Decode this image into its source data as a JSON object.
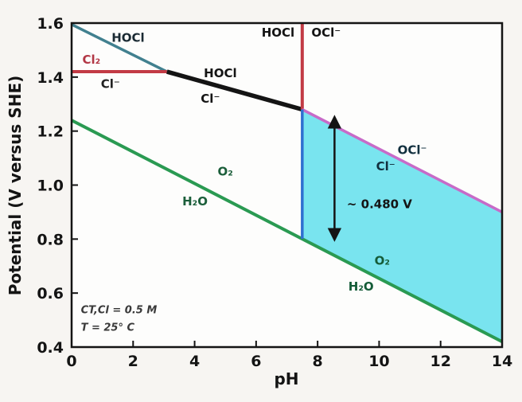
{
  "chart_data": {
    "type": "line",
    "title": "",
    "xlabel": "pH",
    "ylabel": "Potential (V versus SHE)",
    "xlim": [
      0,
      14
    ],
    "ylim": [
      0.4,
      1.6
    ],
    "x_ticks": [
      "0",
      "2",
      "4",
      "6",
      "8",
      "10",
      "12",
      "14"
    ],
    "y_ticks": [
      "0.4",
      "0.6",
      "0.8",
      "1.0",
      "1.2",
      "1.4",
      "1.6"
    ],
    "grid": false,
    "legend": "none",
    "series": [
      {
        "id": "cl2-hocl-line",
        "name": "Cl2 / HOCl boundary",
        "color": "#41808f",
        "width": 3.5,
        "points": [
          [
            0,
            1.595
          ],
          [
            3.1,
            1.42
          ]
        ]
      },
      {
        "id": "cl2-cl-line",
        "name": "Cl2 / Cl- boundary",
        "color": "#c23b45",
        "width": 4,
        "points": [
          [
            0,
            1.42
          ],
          [
            3.1,
            1.42
          ]
        ]
      },
      {
        "id": "hocl-cl-line",
        "name": "HOCl / Cl- boundary",
        "color": "#141414",
        "width": 5.5,
        "points": [
          [
            3.1,
            1.42
          ],
          [
            7.5,
            1.28
          ]
        ]
      },
      {
        "id": "hocl-ocl-line",
        "name": "HOCl / OCl- boundary",
        "color": "#c23b45",
        "width": 4,
        "points": [
          [
            7.5,
            1.28
          ],
          [
            7.5,
            1.6
          ]
        ]
      },
      {
        "id": "ocl-cl-line",
        "name": "OCl- / Cl- boundary",
        "color": "#c76bc8",
        "width": 3.5,
        "points": [
          [
            7.5,
            1.28
          ],
          [
            14,
            0.9
          ]
        ]
      },
      {
        "id": "o2-h2o-line",
        "name": "O2 / H2O line",
        "color": "#2a9a52",
        "width": 4,
        "points": [
          [
            0,
            1.24
          ],
          [
            14,
            0.42
          ]
        ]
      },
      {
        "id": "ph-divider-line",
        "name": "pH 7.5 divider",
        "color": "#2f6fd0",
        "width": 3.5,
        "points": [
          [
            7.5,
            0.801
          ],
          [
            7.5,
            1.28
          ]
        ]
      }
    ],
    "region": {
      "id": "hypochlorite-region",
      "name": "OCl- / Cl- shaded region",
      "fill": "#79e4ef",
      "points": [
        [
          7.5,
          1.28
        ],
        [
          14,
          0.9
        ],
        [
          14,
          0.42
        ],
        [
          7.5,
          0.801
        ]
      ]
    },
    "annotations": [
      {
        "text": "HOCl",
        "x": 1.3,
        "y": 1.53,
        "color": "#1a2a33",
        "anchor": "start"
      },
      {
        "text": "Cl₂",
        "x": 0.35,
        "y": 1.45,
        "color": "#b23745",
        "anchor": "start"
      },
      {
        "text": "Cl⁻",
        "x": 0.95,
        "y": 1.36,
        "color": "#222222",
        "anchor": "start"
      },
      {
        "text": "HOCl",
        "x": 4.3,
        "y": 1.4,
        "color": "#141414",
        "anchor": "start"
      },
      {
        "text": "Cl⁻",
        "x": 4.2,
        "y": 1.305,
        "color": "#141414",
        "anchor": "start"
      },
      {
        "text": "HOCl",
        "x": 7.25,
        "y": 1.55,
        "color": "#141414",
        "anchor": "end"
      },
      {
        "text": "OCl⁻",
        "x": 7.8,
        "y": 1.55,
        "color": "#141414",
        "anchor": "start"
      },
      {
        "text": "OCl⁻",
        "x": 10.6,
        "y": 1.115,
        "color": "#12303f",
        "anchor": "start"
      },
      {
        "text": "Cl⁻",
        "x": 9.9,
        "y": 1.055,
        "color": "#12303f",
        "anchor": "start"
      },
      {
        "text": "O₂",
        "x": 4.75,
        "y": 1.035,
        "color": "#1b5e3a",
        "anchor": "start"
      },
      {
        "text": "H₂O",
        "x": 3.6,
        "y": 0.925,
        "color": "#1b5e3a",
        "anchor": "start"
      },
      {
        "text": "O₂",
        "x": 9.85,
        "y": 0.705,
        "color": "#155c38",
        "anchor": "start"
      },
      {
        "text": "H₂O",
        "x": 9.0,
        "y": 0.61,
        "color": "#155c38",
        "anchor": "start"
      },
      {
        "text": "CT,Cl = 0.5 M",
        "x": 0.3,
        "y": 0.525,
        "color": "#3a3a3a",
        "anchor": "start",
        "italic": true
      },
      {
        "text": "T = 25° C",
        "x": 0.3,
        "y": 0.46,
        "color": "#3a3a3a",
        "anchor": "start",
        "italic": true
      }
    ],
    "arrow": {
      "x": 8.55,
      "y_top": 1.25,
      "y_bottom": 0.8,
      "label": "~ 0.480 V",
      "label_x": 8.95,
      "label_y": 0.915,
      "color": "#141414"
    }
  }
}
